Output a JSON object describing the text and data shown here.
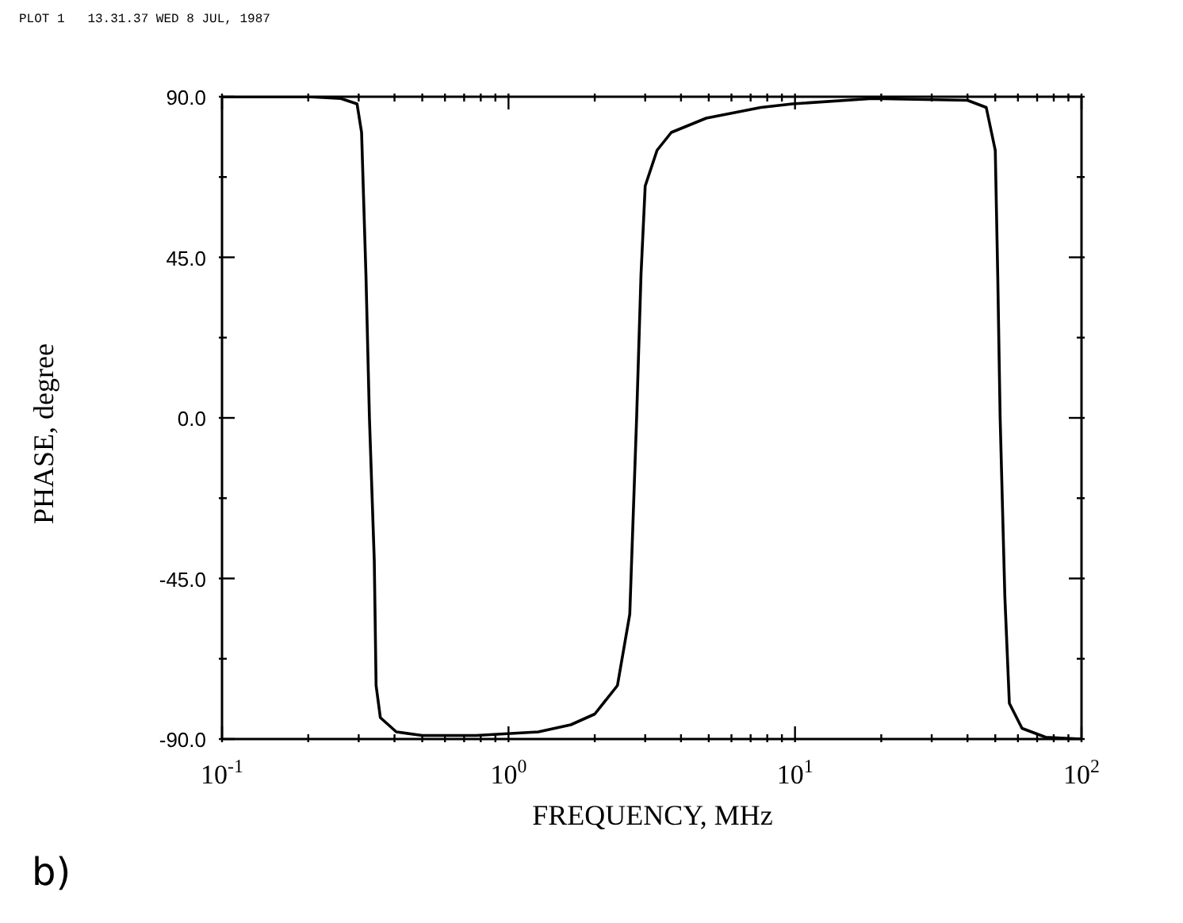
{
  "chart_data": {
    "type": "line",
    "xlabel": "FREQUENCY, MHz",
    "ylabel": "PHASE, degree",
    "log": "x",
    "xlim": [
      0.1,
      100
    ],
    "ylim": [
      -90,
      90
    ],
    "xticks": [
      {
        "value": 0.1,
        "label": "10$^{-1}$"
      },
      {
        "value": 0.2,
        "label": null
      },
      {
        "value": 0.3,
        "label": null
      },
      {
        "value": 0.4,
        "label": null
      },
      {
        "value": 0.5,
        "label": null
      },
      {
        "value": 0.6,
        "label": null
      },
      {
        "value": 0.7,
        "label": null
      },
      {
        "value": 0.8,
        "label": null
      },
      {
        "value": 0.9,
        "label": null
      },
      {
        "value": 1,
        "label": "10$^{0}$"
      },
      {
        "value": 2,
        "label": null
      },
      {
        "value": 3,
        "label": null
      },
      {
        "value": 4,
        "label": null
      },
      {
        "value": 5,
        "label": null
      },
      {
        "value": 6,
        "label": null
      },
      {
        "value": 7,
        "label": null
      },
      {
        "value": 8,
        "label": null
      },
      {
        "value": 9,
        "label": null
      },
      {
        "value": 10,
        "label": "10$^{1}$"
      },
      {
        "value": 20,
        "label": null
      },
      {
        "value": 30,
        "label": null
      },
      {
        "value": 40,
        "label": null
      },
      {
        "value": 50,
        "label": null
      },
      {
        "value": 60,
        "label": null
      },
      {
        "value": 70,
        "label": null
      },
      {
        "value": 80,
        "label": null
      },
      {
        "value": 90,
        "label": null
      },
      {
        "value": 100,
        "label": "10$^{2}$"
      }
    ],
    "yticks": [
      {
        "value": -90,
        "label": "-90.0"
      },
      {
        "value": -67.5,
        "label": null
      },
      {
        "value": -45,
        "label": "-45.0"
      },
      {
        "value": -22.5,
        "label": null
      },
      {
        "value": 0,
        "label": "0.0"
      },
      {
        "value": 22.5,
        "label": null
      },
      {
        "value": 45,
        "label": "45.0"
      },
      {
        "value": 67.5,
        "label": null
      },
      {
        "value": 90,
        "label": "90.0"
      }
    ],
    "marker": "none",
    "line_style": "solid",
    "annotations": [
      "PLOT 1   13.31.37 WED 8 JUL, 1987",
      "b)"
    ],
    "series": [
      {
        "color": "#000000",
        "x": [
          0.1,
          0.2,
          0.26,
          0.296,
          0.307,
          0.318,
          0.327,
          0.34,
          0.345,
          0.357,
          0.406,
          0.5,
          0.77,
          1.27,
          1.65,
          2.0,
          2.4,
          2.65,
          2.8,
          2.9,
          3.0,
          3.3,
          3.7,
          4.9,
          7.6,
          9.8,
          18.6,
          40,
          46.5,
          50,
          51,
          52,
          54,
          56,
          62,
          75,
          100
        ],
        "values": [
          90,
          90,
          89.5,
          88,
          80,
          40,
          0,
          -40,
          -75,
          -84,
          -88,
          -89,
          -89,
          -88,
          -86,
          -83,
          -75,
          -55,
          0,
          40,
          65,
          75,
          80,
          84,
          87,
          88,
          89.5,
          89,
          87,
          75,
          40,
          0,
          -50,
          -80,
          -87,
          -89.5,
          -90
        ]
      }
    ]
  }
}
